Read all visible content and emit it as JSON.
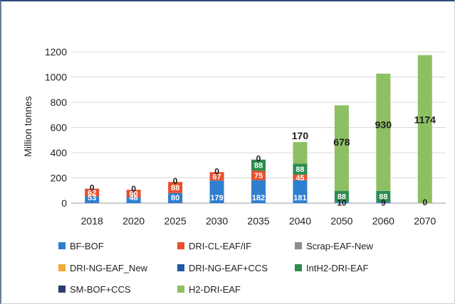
{
  "chart_data": {
    "type": "bar",
    "stacked": true,
    "ylabel": "Million tonnes",
    "xlabel": "",
    "ylim": [
      0,
      1200
    ],
    "yticks": [
      0,
      200,
      400,
      600,
      800,
      1000,
      1200
    ],
    "grid": true,
    "legend_position": "bottom",
    "categories": [
      "2018",
      "2020",
      "2025",
      "2030",
      "2035",
      "2040",
      "2050",
      "2060",
      "2070"
    ],
    "series": [
      {
        "name": "BF-BOF",
        "color": "#2e7fd0",
        "values": [
          53,
          46,
          80,
          179,
          182,
          181,
          10,
          9,
          0
        ]
      },
      {
        "name": "DRI-CL-EAF/IF",
        "color": "#e8502e",
        "values": [
          62,
          60,
          88,
          67,
          75,
          45,
          0,
          0,
          0
        ]
      },
      {
        "name": "Scrap-EAF-New",
        "color": "#8c8c8c",
        "values": [
          0,
          0,
          0,
          0,
          0,
          0,
          0,
          0,
          0
        ]
      },
      {
        "name": "DRI-NG-EAF_New",
        "color": "#f2a93b",
        "values": [
          0,
          0,
          0,
          0,
          0,
          0,
          0,
          0,
          0
        ]
      },
      {
        "name": "DRI-NG-EAF+CCS",
        "color": "#1f5aa6",
        "values": [
          0,
          0,
          0,
          0,
          0,
          0,
          0,
          0,
          0
        ]
      },
      {
        "name": "IntH2-DRI-EAF",
        "color": "#2e8b4f",
        "values": [
          0,
          0,
          0,
          0,
          88,
          88,
          88,
          88,
          0
        ]
      },
      {
        "name": "SM-BOF+CCS",
        "color": "#2b3c6e",
        "values": [
          0,
          0,
          0,
          0,
          0,
          0,
          0,
          0,
          0
        ]
      },
      {
        "name": "H2-DRI-EAF",
        "color": "#8cc063",
        "values": [
          0,
          0,
          0,
          0,
          0,
          170,
          678,
          930,
          1174
        ]
      }
    ],
    "data_labels": [
      {
        "category": "2018",
        "series": "BF-BOF",
        "text": "53"
      },
      {
        "category": "2018",
        "series": "DRI-CL-EAF/IF",
        "text": "62"
      },
      {
        "category": "2018",
        "series": "H2-DRI-EAF",
        "text": "0"
      },
      {
        "category": "2020",
        "series": "BF-BOF",
        "text": "46"
      },
      {
        "category": "2020",
        "series": "DRI-CL-EAF/IF",
        "text": "60"
      },
      {
        "category": "2020",
        "series": "H2-DRI-EAF",
        "text": "0"
      },
      {
        "category": "2025",
        "series": "BF-BOF",
        "text": "80"
      },
      {
        "category": "2025",
        "series": "DRI-CL-EAF/IF",
        "text": "88"
      },
      {
        "category": "2025",
        "series": "H2-DRI-EAF",
        "text": "0"
      },
      {
        "category": "2030",
        "series": "BF-BOF",
        "text": "179"
      },
      {
        "category": "2030",
        "series": "DRI-CL-EAF/IF",
        "text": "67"
      },
      {
        "category": "2030",
        "series": "H2-DRI-EAF",
        "text": "0"
      },
      {
        "category": "2035",
        "series": "BF-BOF",
        "text": "182"
      },
      {
        "category": "2035",
        "series": "DRI-CL-EAF/IF",
        "text": "75"
      },
      {
        "category": "2035",
        "series": "IntH2-DRI-EAF",
        "text": "88"
      },
      {
        "category": "2035",
        "series": "H2-DRI-EAF",
        "text": "0"
      },
      {
        "category": "2040",
        "series": "BF-BOF",
        "text": "181"
      },
      {
        "category": "2040",
        "series": "DRI-CL-EAF/IF",
        "text": "45"
      },
      {
        "category": "2040",
        "series": "IntH2-DRI-EAF",
        "text": "88"
      },
      {
        "category": "2040",
        "series": "H2-DRI-EAF",
        "text": "170"
      },
      {
        "category": "2050",
        "series": "BF-BOF",
        "text": "10"
      },
      {
        "category": "2050",
        "series": "IntH2-DRI-EAF",
        "text": "88"
      },
      {
        "category": "2050",
        "series": "H2-DRI-EAF",
        "text": "678"
      },
      {
        "category": "2060",
        "series": "BF-BOF",
        "text": "9"
      },
      {
        "category": "2060",
        "series": "IntH2-DRI-EAF",
        "text": "88"
      },
      {
        "category": "2060",
        "series": "H2-DRI-EAF",
        "text": "930"
      },
      {
        "category": "2070",
        "series": "BF-BOF",
        "text": "0"
      },
      {
        "category": "2070",
        "series": "H2-DRI-EAF",
        "text": "1174"
      }
    ]
  }
}
